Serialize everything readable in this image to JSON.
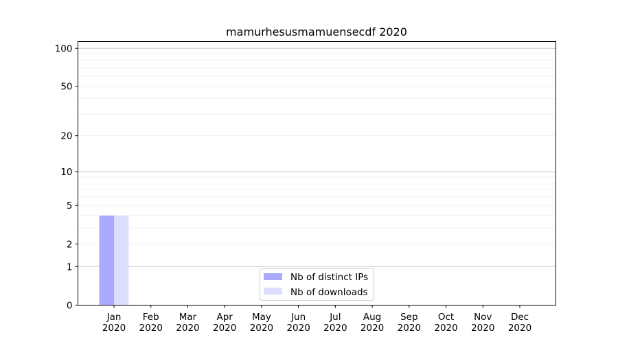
{
  "chart_data": {
    "type": "bar",
    "title": "mamurhesusmamuensecdf 2020",
    "xlabel": "",
    "ylabel": "",
    "y_scale": "log(1+y)",
    "ylim": [
      0,
      113
    ],
    "y_ticks": [
      0,
      1,
      2,
      5,
      10,
      20,
      50,
      100
    ],
    "y_tick_labels": [
      "0",
      "1",
      "2",
      "5",
      "10",
      "20",
      "50",
      "100"
    ],
    "grid": "horizontal, major at 1/10/100, minor between",
    "legend_position": "bottom-center",
    "categories": [
      [
        "Jan",
        "2020"
      ],
      [
        "Feb",
        "2020"
      ],
      [
        "Mar",
        "2020"
      ],
      [
        "Apr",
        "2020"
      ],
      [
        "May",
        "2020"
      ],
      [
        "Jun",
        "2020"
      ],
      [
        "Jul",
        "2020"
      ],
      [
        "Aug",
        "2020"
      ],
      [
        "Sep",
        "2020"
      ],
      [
        "Oct",
        "2020"
      ],
      [
        "Nov",
        "2020"
      ],
      [
        "Dec",
        "2020"
      ]
    ],
    "series": [
      {
        "name": "Nb of distinct IPs",
        "color": "#aaaaff",
        "values": [
          4,
          0,
          0,
          0,
          0,
          0,
          0,
          0,
          0,
          0,
          0,
          0
        ]
      },
      {
        "name": "Nb of downloads",
        "color": "#ddddff",
        "values": [
          4,
          0,
          0,
          0,
          0,
          0,
          0,
          0,
          0,
          0,
          0,
          0
        ]
      }
    ]
  }
}
